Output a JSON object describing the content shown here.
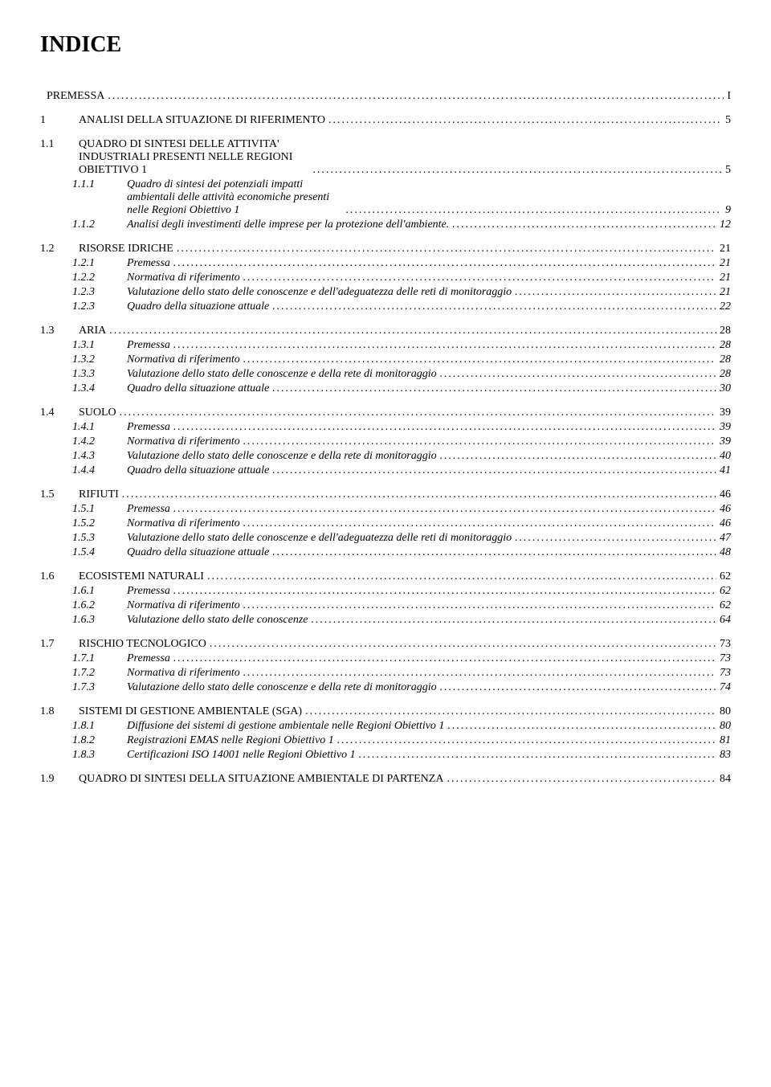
{
  "title": "INDICE",
  "entries": [
    {
      "level": 0,
      "num": "",
      "label": "PREMESSA",
      "page": "I",
      "gap": true
    },
    {
      "level": 1,
      "num": "1",
      "label": "ANALISI DELLA SITUAZIONE DI RIFERIMENTO",
      "page": "5",
      "gap": true
    },
    {
      "level": 1,
      "num": "1.1",
      "label": "QUADRO DI SINTESI DELLE ATTIVITA' INDUSTRIALI PRESENTI NELLE REGIONI OBIETTIVO 1",
      "page": "5",
      "gap": true,
      "wrap": true
    },
    {
      "level": 2,
      "num": "1.1.1",
      "label": "Quadro di sintesi dei potenziali impatti ambientali delle attività economiche presenti nelle Regioni Obiettivo 1",
      "page": "9",
      "wrap": true
    },
    {
      "level": 2,
      "num": "1.1.2",
      "label": "Analisi degli investimenti delle imprese per la protezione dell'ambiente.",
      "page": "12"
    },
    {
      "level": 1,
      "num": "1.2",
      "label": "RISORSE IDRICHE",
      "page": "21",
      "gap": true
    },
    {
      "level": 2,
      "num": "1.2.1",
      "label": "Premessa",
      "page": "21"
    },
    {
      "level": 2,
      "num": "1.2.2",
      "label": "Normativa di riferimento",
      "page": "21"
    },
    {
      "level": 2,
      "num": "1.2.3",
      "label": "Valutazione dello stato delle conoscenze e dell'adeguatezza delle reti di monitoraggio",
      "page": "21"
    },
    {
      "level": 2,
      "num": "1.2.3",
      "label": "Quadro della situazione attuale",
      "page": "22"
    },
    {
      "level": 1,
      "num": "1.3",
      "label": "ARIA",
      "page": "28",
      "gap": true
    },
    {
      "level": 2,
      "num": "1.3.1",
      "label": "Premessa",
      "page": "28"
    },
    {
      "level": 2,
      "num": "1.3.2",
      "label": "Normativa di riferimento",
      "page": "28"
    },
    {
      "level": 2,
      "num": "1.3.3",
      "label": "Valutazione dello stato delle conoscenze e della rete di monitoraggio",
      "page": "28"
    },
    {
      "level": 2,
      "num": "1.3.4",
      "label": "Quadro della situazione attuale",
      "page": "30"
    },
    {
      "level": 1,
      "num": "1.4",
      "label": "SUOLO",
      "page": "39",
      "gap": true
    },
    {
      "level": 2,
      "num": "1.4.1",
      "label": "Premessa",
      "page": "39"
    },
    {
      "level": 2,
      "num": "1.4.2",
      "label": "Normativa di riferimento",
      "page": "39"
    },
    {
      "level": 2,
      "num": "1.4.3",
      "label": "Valutazione dello stato delle conoscenze e della rete di monitoraggio",
      "page": "40"
    },
    {
      "level": 2,
      "num": "1.4.4",
      "label": "Quadro della situazione attuale",
      "page": "41"
    },
    {
      "level": 1,
      "num": "1.5",
      "label": "RIFIUTI",
      "page": "46",
      "gap": true
    },
    {
      "level": 2,
      "num": "1.5.1",
      "label": "Premessa",
      "page": "46"
    },
    {
      "level": 2,
      "num": "1.5.2",
      "label": "Normativa di riferimento",
      "page": "46"
    },
    {
      "level": 2,
      "num": "1.5.3",
      "label": "Valutazione dello stato delle conoscenze e dell'adeguatezza delle reti di monitoraggio",
      "page": "47"
    },
    {
      "level": 2,
      "num": "1.5.4",
      "label": "Quadro della situazione attuale",
      "page": "48"
    },
    {
      "level": 1,
      "num": "1.6",
      "label": "ECOSISTEMI NATURALI",
      "page": "62",
      "gap": true
    },
    {
      "level": 2,
      "num": "1.6.1",
      "label": "Premessa",
      "page": "62"
    },
    {
      "level": 2,
      "num": "1.6.2",
      "label": "Normativa di riferimento",
      "page": "62"
    },
    {
      "level": 2,
      "num": "1.6.3",
      "label": "Valutazione dello stato delle conoscenze",
      "page": "64"
    },
    {
      "level": 1,
      "num": "1.7",
      "label": "RISCHIO TECNOLOGICO",
      "page": "73",
      "gap": true
    },
    {
      "level": 2,
      "num": "1.7.1",
      "label": "Premessa",
      "page": "73"
    },
    {
      "level": 2,
      "num": "1.7.2",
      "label": "Normativa di riferimento",
      "page": "73"
    },
    {
      "level": 2,
      "num": "1.7.3",
      "label": "Valutazione dello stato delle conoscenze e della rete di monitoraggio",
      "page": "74"
    },
    {
      "level": 1,
      "num": "1.8",
      "label": "SISTEMI DI GESTIONE AMBIENTALE (SGA)",
      "page": "80",
      "gap": true
    },
    {
      "level": 2,
      "num": "1.8.1",
      "label": "Diffusione dei sistemi di gestione ambientale nelle Regioni Obiettivo 1",
      "page": "80"
    },
    {
      "level": 2,
      "num": "1.8.2",
      "label": " Registrazioni EMAS nelle Regioni Obiettivo 1",
      "page": "81"
    },
    {
      "level": 2,
      "num": "1.8.3",
      "label": "Certificazioni ISO 14001 nelle Regioni Obiettivo 1",
      "page": "83"
    },
    {
      "level": 1,
      "num": "1.9",
      "label": "QUADRO DI SINTESI DELLA SITUAZIONE AMBIENTALE DI PARTENZA",
      "page": "84",
      "gap": true
    }
  ]
}
